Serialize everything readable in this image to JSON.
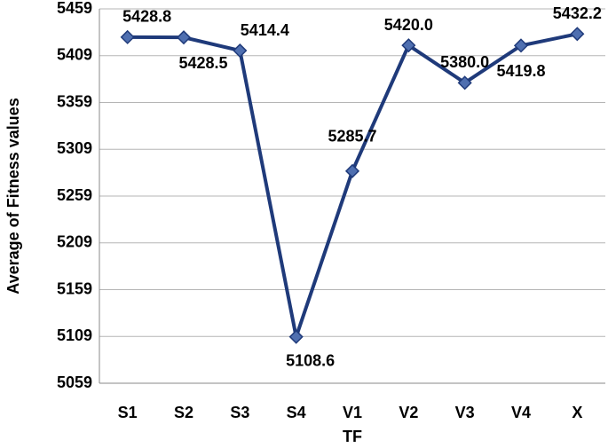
{
  "chart_data": {
    "type": "line",
    "x_label": "TF",
    "y_label": "Average of Fitness values",
    "categories": [
      "S1",
      "S2",
      "S3",
      "S4",
      "V1",
      "V2",
      "V3",
      "V4",
      "X"
    ],
    "values": [
      5428.8,
      5428.5,
      5414.4,
      5108.6,
      5285.7,
      5420.0,
      5380.0,
      5419.8,
      5432.2
    ],
    "value_labels": [
      "5428.8",
      "5428.5",
      "5414.4",
      "5108.6",
      "5285.7",
      "5420.0",
      "5380.0",
      "5419.8",
      "5432.2"
    ],
    "color": "#1f3a7a",
    "marker_color": "#4f6fb0",
    "ylim": [
      5059,
      5459
    ],
    "yticks": [
      5059,
      5109,
      5159,
      5209,
      5259,
      5309,
      5359,
      5409,
      5459
    ],
    "grid": true
  }
}
